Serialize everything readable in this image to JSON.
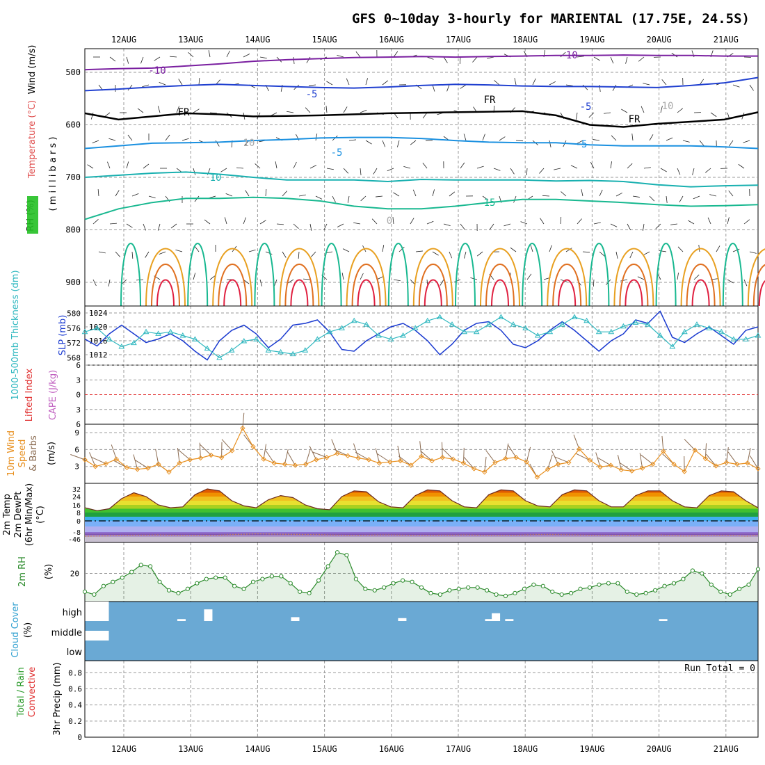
{
  "title": "GFS 0~10day 3-hourly for MARIENTAL (17.75E, 24.5S)",
  "date_labels": [
    "12AUG",
    "13AUG",
    "14AUG",
    "15AUG",
    "16AUG",
    "17AUG",
    "18AUG",
    "19AUG",
    "20AUG",
    "21AUG"
  ],
  "run_total": "Run Total = 0",
  "colors": {
    "frame": "#000000",
    "grid": "#999999",
    "cloud": "#6aa9d4",
    "purple": "#7a1fa0",
    "blue": "#2040d0",
    "lightblue": "#1a90e0",
    "teal": "#18b0b0",
    "green": "#18b890",
    "orange": "#e8a020",
    "red": "#e02040",
    "slp": "#1a3ad0",
    "thick": "#30b8c0",
    "wind": "#e89020",
    "rh": "#2a8a2a"
  },
  "chart_data": [
    {
      "panel": "upper-air",
      "type": "heatmap",
      "y_axis": {
        "label_parts": [
          "Wind (m/s)",
          "Temperature (°C)",
          "RH (%)",
          "( m i l l i b a r s )"
        ],
        "ticks": [
          "500",
          "600",
          "700",
          "800",
          "900"
        ],
        "ylim": [
          455,
          945
        ]
      },
      "contour_labels": [
        "-10",
        "-10",
        "-5",
        "-5",
        "FR",
        "FR",
        "FR",
        "-5",
        "-5",
        "10",
        "10",
        "15",
        "10",
        "0"
      ],
      "isotherms": [
        {
          "name": "-10",
          "values": [
            495,
            493,
            492,
            488,
            484,
            479,
            476,
            474,
            472,
            471,
            470,
            471,
            470,
            469,
            468,
            468,
            467,
            468,
            468,
            469,
            469
          ]
        },
        {
          "name": "-5",
          "values": [
            535,
            532,
            528,
            525,
            523,
            525,
            527,
            529,
            530,
            528,
            525,
            523,
            524,
            526,
            527,
            527,
            528,
            529,
            525,
            520,
            510
          ]
        },
        {
          "name": "FR",
          "values": [
            578,
            590,
            584,
            578,
            580,
            584,
            583,
            582,
            580,
            578,
            577,
            576,
            575,
            574,
            582,
            600,
            604,
            598,
            594,
            590,
            576
          ]
        },
        {
          "name": "5",
          "values": [
            645,
            640,
            635,
            634,
            633,
            630,
            628,
            625,
            624,
            624,
            626,
            630,
            633,
            634,
            634,
            638,
            640,
            640,
            640,
            642,
            645
          ]
        },
        {
          "name": "10",
          "values": [
            700,
            696,
            692,
            690,
            694,
            700,
            705,
            705,
            705,
            708,
            704,
            705,
            705,
            705,
            707,
            706,
            708,
            714,
            718,
            716,
            715
          ]
        },
        {
          "name": "15",
          "values": [
            780,
            760,
            748,
            740,
            740,
            738,
            740,
            745,
            755,
            760,
            760,
            755,
            748,
            742,
            742,
            745,
            748,
            752,
            755,
            754,
            752
          ]
        }
      ]
    },
    {
      "panel": "slp-thickness",
      "type": "line",
      "y_left": {
        "label": "1000-500mb Thickness (dm)",
        "ticks": [
          "568",
          "572",
          "576",
          "580"
        ],
        "ylim": [
          566,
          582
        ]
      },
      "y_right": {
        "label": "SLP (mb)",
        "ticks": [
          "1012",
          "1016",
          "1020",
          "1024"
        ],
        "ylim": [
          1009,
          1026
        ]
      },
      "series": [
        {
          "name": "SLP (mb)",
          "axis": "right",
          "values": [
            1016.5,
            1014.5,
            1018,
            1020.5,
            1018,
            1015.5,
            1016.5,
            1018,
            1016,
            1013,
            1010.5,
            1016,
            1019,
            1020.5,
            1018,
            1014,
            1016.5,
            1020.5,
            1021,
            1022,
            1018.5,
            1013.5,
            1013,
            1016,
            1018,
            1020,
            1021,
            1019,
            1016,
            1012,
            1015,
            1019,
            1021,
            1021.5,
            1019,
            1015,
            1014,
            1016,
            1019,
            1021.5,
            1019,
            1016,
            1013,
            1016,
            1018,
            1022,
            1021,
            1024.5,
            1017,
            1015.5,
            1018,
            1020,
            1017.5,
            1015,
            1019,
            1020
          ]
        },
        {
          "name": "Thickness (dm)",
          "axis": "left",
          "values": [
            575,
            576,
            573,
            571,
            572,
            575,
            574.5,
            575,
            574,
            573,
            570.5,
            568,
            570,
            572.5,
            573,
            570,
            569.5,
            569,
            570,
            573,
            575,
            576,
            578,
            577,
            574,
            573,
            574,
            576,
            578,
            579,
            577,
            575,
            575,
            577,
            579,
            577,
            576,
            574,
            575,
            577,
            579,
            578,
            575,
            575,
            576.5,
            577.5,
            577,
            574,
            571,
            575,
            577,
            576,
            575,
            573,
            573,
            574
          ]
        }
      ]
    },
    {
      "panel": "instability",
      "type": "line",
      "y_axis": {
        "label": "Lifted Index",
        "ticks": [
          "6",
          "3",
          "0",
          "3",
          "6"
        ],
        "ylim": [
          -6,
          6
        ]
      },
      "y_right": {
        "label": "CAPE (J/kg)"
      },
      "series": [
        {
          "name": "Lifted Index zero line",
          "values": [
            0,
            0
          ]
        }
      ]
    },
    {
      "panel": "wind",
      "type": "line",
      "y_axis": {
        "label": "10m Wind Speed & Barbs (m/s)",
        "ticks": [
          "3",
          "6",
          "9"
        ],
        "ylim": [
          0,
          10.5
        ]
      },
      "series": [
        {
          "name": "Speed",
          "values": [
            4.2,
            3.0,
            3.5,
            4.3,
            2.8,
            2.5,
            2.7,
            3.4,
            2.0,
            3.6,
            4.2,
            4.5,
            5.0,
            4.6,
            5.8,
            9.8,
            6.5,
            4.3,
            3.6,
            3.4,
            3.2,
            3.4,
            4.2,
            4.6,
            5.3,
            4.9,
            4.5,
            4.2,
            3.6,
            3.8,
            4.0,
            3.2,
            4.8,
            4.0,
            4.6,
            4.3,
            3.6,
            2.6,
            2.0,
            3.7,
            4.4,
            4.6,
            3.8,
            1.1,
            2.5,
            3.4,
            3.7,
            6.1,
            4.1,
            2.9,
            3.2,
            2.4,
            2.2,
            2.7,
            3.4,
            5.7,
            3.4,
            2.1,
            5.9,
            4.4,
            3.1,
            3.7,
            3.4,
            3.6,
            2.6
          ]
        }
      ]
    },
    {
      "panel": "temperature",
      "type": "area",
      "y_axis": {
        "label": "2m Temp 2m DewPt (6hr Min/Max) (°C)",
        "ticks": [
          "32",
          "24",
          "16",
          "8",
          "0",
          "-8",
          "-46"
        ],
        "ylim": [
          -46,
          36
        ]
      },
      "series": [
        {
          "name": "2m Temp",
          "values": [
            13,
            10,
            12,
            22,
            28,
            24,
            16,
            13,
            14,
            26,
            32,
            30,
            20,
            15,
            13,
            21,
            25,
            23,
            16,
            12,
            11,
            24,
            30,
            29,
            19,
            14,
            13,
            25,
            31,
            30,
            20,
            14,
            13,
            26,
            31,
            30,
            20,
            15,
            14,
            26,
            31,
            30,
            20,
            14,
            14,
            25,
            30,
            30,
            20,
            14,
            13,
            25,
            30,
            29,
            20,
            13
          ]
        },
        {
          "name": "2m DewPt",
          "values": [
            -31,
            -30,
            -29,
            -27,
            -25,
            -25,
            -24,
            -25,
            -27,
            -27,
            -26,
            -25,
            -22,
            -20,
            -18,
            -19,
            -20,
            -21,
            -22,
            -22,
            -24,
            -25,
            -26,
            -25,
            -24,
            -24,
            -25,
            -26,
            -26,
            -25,
            -25,
            -24,
            -25,
            -26,
            -27,
            -26,
            -24,
            -22,
            -22,
            -23,
            -24,
            -25,
            -26,
            -27,
            -27,
            -26,
            -24,
            -24,
            -28,
            -30,
            -29,
            -27,
            -26,
            -27,
            -31,
            -27
          ]
        }
      ]
    },
    {
      "panel": "rh",
      "type": "area",
      "y_axis": {
        "label": "2m RH (%)",
        "ticks": [
          "20"
        ],
        "ylim": [
          0,
          42
        ]
      },
      "series": [
        {
          "name": "2m RH",
          "values": [
            7,
            5,
            11,
            14,
            17,
            21,
            26,
            25,
            14,
            8,
            6,
            9,
            13,
            16,
            17,
            17,
            11,
            9,
            14,
            16,
            18,
            18,
            13,
            7,
            6,
            15,
            25,
            35,
            33,
            16,
            9,
            8,
            10,
            13,
            15,
            14,
            10,
            6,
            5,
            8,
            9,
            10,
            10,
            8,
            5,
            4,
            6,
            9,
            12,
            11,
            7,
            5,
            6,
            9,
            10,
            12,
            13,
            13,
            7,
            5,
            6,
            8,
            11,
            13,
            16,
            22,
            20,
            12,
            7,
            5,
            9,
            12,
            23
          ]
        }
      ]
    },
    {
      "panel": "cloud",
      "type": "heatmap",
      "y_axis": {
        "label": "Cloud Cover (%)",
        "ticks": [
          "high",
          "middle",
          "low"
        ]
      },
      "levels": [
        "high",
        "middle",
        "low"
      ],
      "clear_gaps": [
        {
          "level": "high",
          "day": 0,
          "amount": 1.0
        },
        {
          "level": "middle",
          "day": 0,
          "amount": 0.5
        },
        {
          "level": "high",
          "day": 0.8,
          "amount": 0.1
        },
        {
          "level": "high",
          "day": 1.2,
          "amount": 0.6
        },
        {
          "level": "high",
          "day": 2.5,
          "amount": 0.2
        },
        {
          "level": "high",
          "day": 4.1,
          "amount": 0.15
        },
        {
          "level": "high",
          "day": 5.4,
          "amount": 0.1
        },
        {
          "level": "high",
          "day": 5.5,
          "amount": 0.4
        },
        {
          "level": "high",
          "day": 5.7,
          "amount": 0.1
        },
        {
          "level": "high",
          "day": 8.0,
          "amount": 0.1
        }
      ]
    },
    {
      "panel": "precip",
      "type": "bar",
      "y_axis": {
        "label": "3hr Precip (mm)",
        "ticks": [
          "0",
          "0.2",
          "0.4",
          "0.6",
          "0.8"
        ],
        "ylim": [
          0,
          0.95
        ]
      },
      "series": [
        {
          "name": "Total / Rain",
          "values": []
        },
        {
          "name": "Convective",
          "values": []
        }
      ]
    }
  ]
}
